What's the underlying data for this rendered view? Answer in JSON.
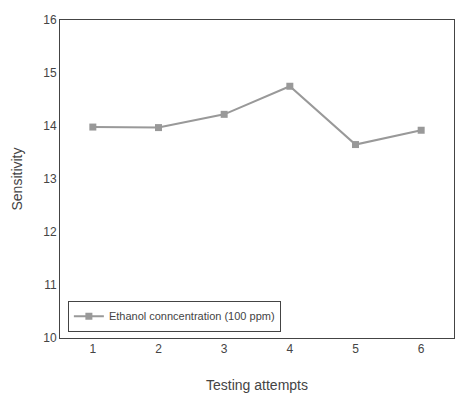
{
  "chart_data": {
    "type": "line",
    "x": [
      1,
      2,
      3,
      4,
      5,
      6
    ],
    "series": [
      {
        "name": "Ethanol conncentration (100 ppm)",
        "color": "#999999",
        "marker": "square",
        "values": [
          13.98,
          13.97,
          14.22,
          14.75,
          13.65,
          13.92
        ]
      }
    ],
    "xlabel": "Testing attempts",
    "ylabel": "Sensitivity",
    "xlim": [
      0.5,
      6.5
    ],
    "ylim": [
      10,
      16
    ],
    "xticks": [
      1,
      2,
      3,
      4,
      5,
      6
    ],
    "yticks": [
      10,
      11,
      12,
      13,
      14,
      15,
      16
    ],
    "grid": false,
    "legend": "lower left"
  }
}
